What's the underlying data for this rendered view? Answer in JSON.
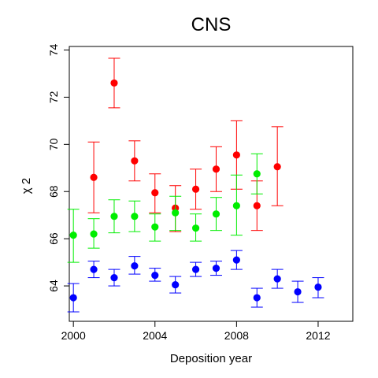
{
  "chart_data": {
    "type": "scatter",
    "title": "CNS",
    "xlabel": "Deposition year",
    "ylabel": "χ 2",
    "xlim": [
      1999.8,
      2013.7
    ],
    "ylim": [
      62.5,
      74.15
    ],
    "x_ticks": [
      "2000",
      "2004",
      "2008",
      "2012"
    ],
    "x_tick_values": [
      2000,
      2004,
      2008,
      2012
    ],
    "y_ticks": [
      "64",
      "66",
      "68",
      "70",
      "72",
      "74"
    ],
    "y_tick_values": [
      64,
      66,
      68,
      70,
      72,
      74
    ],
    "grid": false,
    "legend": "none",
    "error_bars": true,
    "series": [
      {
        "color": "#ff0000",
        "points": [
          {
            "x": 2001,
            "y": 68.6,
            "low": 67.1,
            "high": 70.1
          },
          {
            "x": 2002,
            "y": 72.6,
            "low": 71.55,
            "high": 73.65
          },
          {
            "x": 2003,
            "y": 69.3,
            "low": 68.45,
            "high": 70.15
          },
          {
            "x": 2004,
            "y": 67.95,
            "low": 67.1,
            "high": 68.75
          },
          {
            "x": 2005,
            "y": 67.3,
            "low": 66.3,
            "high": 68.25
          },
          {
            "x": 2006,
            "y": 68.1,
            "low": 67.25,
            "high": 68.95
          },
          {
            "x": 2007,
            "y": 68.95,
            "low": 68.0,
            "high": 69.9
          },
          {
            "x": 2008,
            "y": 69.55,
            "low": 68.1,
            "high": 71.0
          },
          {
            "x": 2009,
            "y": 67.4,
            "low": 66.35,
            "high": 68.45
          },
          {
            "x": 2010,
            "y": 69.05,
            "low": 67.4,
            "high": 70.75
          }
        ]
      },
      {
        "color": "#00ee00",
        "points": [
          {
            "x": 2000,
            "y": 66.15,
            "low": 65.0,
            "high": 67.25
          },
          {
            "x": 2001,
            "y": 66.2,
            "low": 65.6,
            "high": 66.85
          },
          {
            "x": 2002,
            "y": 66.95,
            "low": 66.25,
            "high": 67.65
          },
          {
            "x": 2003,
            "y": 66.95,
            "low": 66.3,
            "high": 67.6
          },
          {
            "x": 2004,
            "y": 66.5,
            "low": 65.9,
            "high": 67.05
          },
          {
            "x": 2005,
            "y": 67.1,
            "low": 66.35,
            "high": 67.8
          },
          {
            "x": 2006,
            "y": 66.45,
            "low": 65.9,
            "high": 67.05
          },
          {
            "x": 2007,
            "y": 67.05,
            "low": 66.35,
            "high": 67.75
          },
          {
            "x": 2008,
            "y": 67.4,
            "low": 66.15,
            "high": 68.7
          },
          {
            "x": 2009,
            "y": 68.75,
            "low": 67.9,
            "high": 69.6
          }
        ]
      },
      {
        "color": "#0000ff",
        "points": [
          {
            "x": 2000,
            "y": 63.5,
            "low": 62.9,
            "high": 64.1
          },
          {
            "x": 2001,
            "y": 64.7,
            "low": 64.35,
            "high": 65.05
          },
          {
            "x": 2002,
            "y": 64.35,
            "low": 64.0,
            "high": 64.7
          },
          {
            "x": 2003,
            "y": 64.85,
            "low": 64.5,
            "high": 65.25
          },
          {
            "x": 2004,
            "y": 64.45,
            "low": 64.2,
            "high": 64.75
          },
          {
            "x": 2005,
            "y": 64.05,
            "low": 63.7,
            "high": 64.4
          },
          {
            "x": 2006,
            "y": 64.7,
            "low": 64.4,
            "high": 65.0
          },
          {
            "x": 2007,
            "y": 64.75,
            "low": 64.45,
            "high": 65.05
          },
          {
            "x": 2008,
            "y": 65.1,
            "low": 64.7,
            "high": 65.5
          },
          {
            "x": 2009,
            "y": 63.5,
            "low": 63.1,
            "high": 63.9
          },
          {
            "x": 2010,
            "y": 64.3,
            "low": 63.9,
            "high": 64.7
          },
          {
            "x": 2011,
            "y": 63.75,
            "low": 63.3,
            "high": 64.2
          },
          {
            "x": 2012,
            "y": 63.95,
            "low": 63.5,
            "high": 64.35
          }
        ]
      }
    ]
  }
}
